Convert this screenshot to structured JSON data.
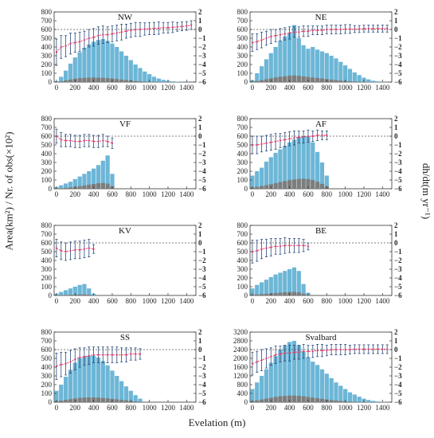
{
  "figure": {
    "ylabel_left": "Area(km²) / Nr. of obs(×10²)",
    "ylabel_right": "dh/dt(m yr⁻¹)",
    "xlabel": "Evelation (m)",
    "colors": {
      "area": "#6db6d6",
      "obs": "#7d7d7d",
      "dhdt_line": "#e03a6a",
      "error": "#2a4a7a",
      "reference": "#555555"
    }
  },
  "chart_data": [
    {
      "type": "bar",
      "title": "NW",
      "x": [
        0,
        50,
        100,
        150,
        200,
        250,
        300,
        350,
        400,
        450,
        500,
        550,
        600,
        650,
        700,
        750,
        800,
        850,
        900,
        950,
        1000,
        1050,
        1100,
        1150,
        1200,
        1250,
        1300,
        1350,
        1400,
        1450
      ],
      "series": [
        {
          "values": [
            10,
            60,
            130,
            210,
            280,
            340,
            390,
            430,
            460,
            480,
            490,
            470,
            440,
            400,
            350,
            300,
            250,
            200,
            160,
            120,
            90,
            60,
            40,
            25,
            15,
            8,
            4,
            2,
            1,
            0
          ]
        },
        {
          "values": [
            2,
            8,
            18,
            28,
            38,
            44,
            48,
            50,
            52,
            50,
            48,
            44,
            40,
            34,
            28,
            22,
            17,
            12,
            9,
            6,
            4,
            3,
            2,
            1,
            1,
            0,
            0,
            0,
            0,
            0
          ]
        },
        {
          "values": [
            -2.6,
            -2.0,
            -1.9,
            -1.6,
            -1.5,
            -1.4,
            -1.2,
            -1.0,
            -0.9,
            -0.7,
            -0.6,
            -0.6,
            -0.5,
            -0.4,
            -0.3,
            -0.2,
            -0.1,
            0.0,
            0.0,
            0.05,
            0.1,
            0.1,
            0.15,
            0.2,
            0.2,
            0.25,
            0.3,
            0.35,
            0.4,
            0.5
          ]
        }
      ],
      "errors": [
        1.5,
        1.3,
        1.2,
        1.2,
        1.1,
        1.1,
        1.0,
        1.0,
        1.0,
        1.0,
        1.0,
        0.9,
        0.9,
        0.9,
        0.9,
        0.8,
        0.8,
        0.8,
        0.8,
        0.7,
        0.7,
        0.7,
        0.7,
        0.6,
        0.6,
        0.6,
        0.5,
        0.5,
        0.5,
        0.5
      ],
      "ylim": [
        0,
        800
      ],
      "y2lim": [
        -6,
        2
      ],
      "xlim": [
        -25,
        1500
      ],
      "reference_y2": 0,
      "yticks": [
        0,
        100,
        200,
        300,
        400,
        500,
        600,
        700,
        800
      ],
      "y2ticks": [
        -6,
        -5,
        -4,
        -3,
        -2,
        -1,
        0,
        1,
        2
      ],
      "xticks": [
        0,
        200,
        400,
        600,
        800,
        1000,
        1200,
        1400
      ]
    },
    {
      "type": "bar",
      "title": "NE",
      "x": [
        0,
        50,
        100,
        150,
        200,
        250,
        300,
        350,
        400,
        450,
        500,
        550,
        600,
        650,
        700,
        750,
        800,
        850,
        900,
        950,
        1000,
        1050,
        1100,
        1150,
        1200,
        1250,
        1300,
        1350,
        1400,
        1450
      ],
      "series": [
        {
          "values": [
            20,
            100,
            180,
            260,
            330,
            400,
            470,
            520,
            560,
            650,
            500,
            420,
            380,
            400,
            370,
            350,
            330,
            300,
            270,
            230,
            190,
            150,
            110,
            80,
            50,
            30,
            15,
            8,
            3,
            1
          ]
        },
        {
          "values": [
            3,
            12,
            22,
            32,
            42,
            52,
            60,
            66,
            72,
            75,
            70,
            64,
            58,
            52,
            46,
            40,
            34,
            28,
            22,
            17,
            13,
            9,
            6,
            4,
            2,
            1,
            1,
            0,
            0,
            0
          ]
        },
        {
          "values": [
            -1.5,
            -1.4,
            -1.2,
            -1.0,
            -0.8,
            -0.7,
            -0.6,
            -0.5,
            -0.4,
            -0.3,
            -0.3,
            -0.2,
            -0.2,
            -0.1,
            -0.1,
            -0.1,
            0.0,
            0.0,
            0.0,
            0.0,
            0.05,
            0.05,
            0.05,
            0.05,
            0.1,
            0.1,
            0.1,
            0.1,
            0.1,
            0.1
          ]
        }
      ],
      "errors": [
        1.0,
        0.9,
        0.9,
        0.8,
        0.8,
        0.7,
        0.7,
        0.7,
        0.7,
        0.6,
        0.6,
        0.6,
        0.6,
        0.5,
        0.5,
        0.5,
        0.5,
        0.5,
        0.5,
        0.5,
        0.5,
        0.5,
        0.4,
        0.4,
        0.4,
        0.4,
        0.4,
        0.4,
        0.4,
        0.4
      ],
      "ylim": [
        0,
        800
      ],
      "y2lim": [
        -6,
        2
      ],
      "xlim": [
        -25,
        1500
      ],
      "reference_y2": 0,
      "yticks": [
        0,
        100,
        200,
        300,
        400,
        500,
        600,
        700,
        800
      ],
      "y2ticks": [
        -6,
        -5,
        -4,
        -3,
        -2,
        -1,
        0,
        1,
        2
      ],
      "xticks": [
        0,
        200,
        400,
        600,
        800,
        1000,
        1200,
        1400
      ]
    },
    {
      "type": "bar",
      "title": "VF",
      "x": [
        0,
        50,
        100,
        150,
        200,
        250,
        300,
        350,
        400,
        450,
        500,
        550,
        600
      ],
      "series": [
        {
          "values": [
            20,
            40,
            60,
            80,
            110,
            140,
            170,
            200,
            230,
            270,
            320,
            380,
            170
          ]
        },
        {
          "values": [
            3,
            6,
            10,
            15,
            22,
            30,
            38,
            46,
            54,
            62,
            66,
            58,
            28
          ]
        },
        {
          "values": [
            0.0,
            -0.4,
            -0.5,
            -0.5,
            -0.6,
            -0.6,
            -0.5,
            -0.5,
            -0.6,
            -0.6,
            -0.5,
            -0.6,
            -0.8
          ]
        }
      ],
      "errors": [
        0.8,
        0.8,
        0.7,
        0.7,
        0.7,
        0.7,
        0.7,
        0.7,
        0.7,
        0.7,
        0.7,
        0.6,
        0.6
      ],
      "ylim": [
        0,
        800
      ],
      "y2lim": [
        -6,
        2
      ],
      "xlim": [
        -25,
        1500
      ],
      "reference_y2": 0,
      "yticks": [
        0,
        100,
        200,
        300,
        400,
        500,
        600,
        700,
        800
      ],
      "y2ticks": [
        -6,
        -5,
        -4,
        -3,
        -2,
        -1,
        0,
        1,
        2
      ],
      "xticks": [
        0,
        200,
        400,
        600,
        800,
        1000,
        1200,
        1400
      ]
    },
    {
      "type": "bar",
      "title": "AF",
      "x": [
        0,
        50,
        100,
        150,
        200,
        250,
        300,
        350,
        400,
        450,
        500,
        550,
        600,
        650,
        700,
        750,
        800
      ],
      "series": [
        {
          "values": [
            150,
            200,
            240,
            310,
            360,
            410,
            450,
            490,
            530,
            560,
            590,
            600,
            600,
            530,
            420,
            300,
            150
          ]
        },
        {
          "values": [
            15,
            22,
            30,
            40,
            52,
            64,
            76,
            88,
            98,
            106,
            112,
            114,
            110,
            100,
            80,
            56,
            28
          ]
        },
        {
          "values": [
            -1.0,
            -1.0,
            -0.9,
            -0.8,
            -0.7,
            -0.6,
            -0.5,
            -0.4,
            -0.3,
            -0.2,
            -0.1,
            -0.1,
            0.0,
            0.0,
            0.1,
            0.1,
            0.1
          ]
        }
      ],
      "errors": [
        1.0,
        1.0,
        0.9,
        0.9,
        0.9,
        0.9,
        0.8,
        0.8,
        0.8,
        0.8,
        0.7,
        0.7,
        0.7,
        0.6,
        0.6,
        0.5,
        0.5
      ],
      "ylim": [
        0,
        800
      ],
      "y2lim": [
        -6,
        2
      ],
      "xlim": [
        -25,
        1500
      ],
      "reference_y2": 0,
      "yticks": [
        0,
        100,
        200,
        300,
        400,
        500,
        600,
        700,
        800
      ],
      "y2ticks": [
        -6,
        -5,
        -4,
        -3,
        -2,
        -1,
        0,
        1,
        2
      ],
      "xticks": [
        0,
        200,
        400,
        600,
        800,
        1000,
        1200,
        1400
      ]
    },
    {
      "type": "bar",
      "title": "KV",
      "x": [
        0,
        50,
        100,
        150,
        200,
        250,
        300,
        350,
        400
      ],
      "series": [
        {
          "values": [
            20,
            40,
            60,
            80,
            100,
            120,
            130,
            80,
            20
          ]
        },
        {
          "values": [
            2,
            4,
            6,
            8,
            10,
            12,
            12,
            8,
            2
          ]
        },
        {
          "values": [
            -0.6,
            -0.9,
            -1.0,
            -0.9,
            -0.8,
            -0.8,
            -0.7,
            -0.6,
            -0.7
          ]
        }
      ],
      "errors": [
        1.0,
        1.0,
        1.0,
        1.0,
        1.0,
        1.0,
        1.0,
        1.0,
        0.5
      ],
      "ylim": [
        0,
        800
      ],
      "y2lim": [
        -6,
        2
      ],
      "xlim": [
        -25,
        1500
      ],
      "reference_y2": 0,
      "yticks": [
        0,
        100,
        200,
        300,
        400,
        500,
        600,
        700,
        800
      ],
      "y2ticks": [
        -6,
        -5,
        -4,
        -3,
        -2,
        -1,
        0,
        1,
        2
      ],
      "xticks": [
        0,
        200,
        400,
        600,
        800,
        1000,
        1200,
        1400
      ]
    },
    {
      "type": "bar",
      "title": "BE",
      "x": [
        0,
        50,
        100,
        150,
        200,
        250,
        300,
        350,
        400,
        450,
        500,
        550,
        600
      ],
      "series": [
        {
          "values": [
            80,
            120,
            150,
            180,
            210,
            240,
            260,
            280,
            300,
            320,
            280,
            130,
            30
          ]
        },
        {
          "values": [
            8,
            12,
            16,
            20,
            24,
            28,
            32,
            36,
            40,
            40,
            36,
            20,
            5
          ]
        },
        {
          "values": [
            -1.0,
            -0.9,
            -0.7,
            -0.6,
            -0.5,
            -0.4,
            -0.4,
            -0.3,
            -0.3,
            -0.3,
            -0.3,
            -0.3,
            -0.4
          ]
        }
      ],
      "errors": [
        1.3,
        1.2,
        1.1,
        1.0,
        1.0,
        0.9,
        0.9,
        0.9,
        0.8,
        0.8,
        0.8,
        0.7,
        0.4
      ],
      "ylim": [
        0,
        800
      ],
      "y2lim": [
        -6,
        2
      ],
      "xlim": [
        -25,
        1500
      ],
      "reference_y2": 0,
      "yticks": [
        0,
        100,
        200,
        300,
        400,
        500,
        600,
        700,
        800
      ],
      "y2ticks": [
        -6,
        -5,
        -4,
        -3,
        -2,
        -1,
        0,
        1,
        2
      ],
      "xticks": [
        0,
        200,
        400,
        600,
        800,
        1000,
        1200,
        1400
      ]
    },
    {
      "type": "bar",
      "title": "SS",
      "x": [
        0,
        50,
        100,
        150,
        200,
        250,
        300,
        350,
        400,
        450,
        500,
        550,
        600,
        650,
        700,
        750,
        800,
        850,
        900
      ],
      "series": [
        {
          "values": [
            130,
            200,
            290,
            370,
            450,
            500,
            520,
            530,
            530,
            510,
            470,
            420,
            360,
            300,
            240,
            180,
            130,
            80,
            40
          ]
        },
        {
          "values": [
            10,
            18,
            26,
            34,
            42,
            48,
            52,
            54,
            54,
            52,
            48,
            44,
            38,
            32,
            26,
            20,
            14,
            9,
            4
          ]
        },
        {
          "values": [
            -1.9,
            -1.7,
            -1.6,
            -1.4,
            -1.1,
            -0.9,
            -0.8,
            -0.7,
            -0.6,
            -0.6,
            -0.6,
            -0.6,
            -0.6,
            -0.6,
            -0.6,
            -0.6,
            -0.5,
            -0.5,
            -0.5
          ]
        }
      ],
      "errors": [
        1.5,
        1.4,
        1.3,
        1.3,
        1.2,
        1.1,
        1.0,
        1.0,
        0.9,
        0.9,
        0.9,
        0.9,
        0.9,
        0.9,
        0.8,
        0.8,
        0.7,
        0.7,
        0.6
      ],
      "ylim": [
        0,
        800
      ],
      "y2lim": [
        -6,
        2
      ],
      "xlim": [
        -25,
        1500
      ],
      "reference_y2": 0,
      "yticks": [
        0,
        100,
        200,
        300,
        400,
        500,
        600,
        700,
        800
      ],
      "y2ticks": [
        -6,
        -5,
        -4,
        -3,
        -2,
        -1,
        0,
        1,
        2
      ],
      "xticks": [
        0,
        200,
        400,
        600,
        800,
        1000,
        1200,
        1400
      ]
    },
    {
      "type": "bar",
      "title": "Svalbard",
      "x": [
        0,
        50,
        100,
        150,
        200,
        250,
        300,
        350,
        400,
        450,
        500,
        550,
        600,
        650,
        700,
        750,
        800,
        850,
        900,
        950,
        1000,
        1050,
        1100,
        1150,
        1200,
        1250,
        1300,
        1350,
        1400,
        1450
      ],
      "series": [
        {
          "values": [
            600,
            900,
            1200,
            1500,
            1800,
            2100,
            2400,
            2600,
            2750,
            2800,
            2600,
            2300,
            2050,
            1850,
            1700,
            1500,
            1300,
            1100,
            900,
            750,
            600,
            450,
            350,
            250,
            160,
            100,
            60,
            30,
            15,
            5
          ]
        },
        {
          "values": [
            40,
            80,
            120,
            160,
            200,
            240,
            270,
            290,
            300,
            300,
            290,
            270,
            240,
            210,
            180,
            150,
            120,
            95,
            75,
            55,
            40,
            28,
            18,
            10,
            6,
            3,
            2,
            1,
            0,
            0
          ]
        },
        {
          "values": [
            -1.6,
            -1.4,
            -1.2,
            -1.0,
            -0.8,
            -0.6,
            -0.5,
            -0.4,
            -0.4,
            -0.3,
            -0.3,
            -0.2,
            -0.2,
            -0.2,
            -0.1,
            -0.1,
            -0.1,
            0.0,
            0.0,
            0.0,
            0.0,
            0.0,
            0.05,
            0.05,
            0.05,
            0.05,
            0.05,
            0.05,
            0.05,
            0.05
          ]
        }
      ],
      "errors": [
        1.3,
        1.2,
        1.2,
        1.1,
        1.0,
        1.0,
        0.9,
        0.9,
        0.9,
        0.8,
        0.8,
        0.8,
        0.7,
        0.7,
        0.7,
        0.7,
        0.6,
        0.6,
        0.6,
        0.6,
        0.6,
        0.5,
        0.5,
        0.5,
        0.5,
        0.5,
        0.5,
        0.5,
        0.5,
        0.5
      ],
      "ylim": [
        0,
        3200
      ],
      "y2lim": [
        -6,
        2
      ],
      "xlim": [
        -25,
        1500
      ],
      "reference_y2": 0,
      "yticks": [
        0,
        400,
        800,
        1200,
        1600,
        2000,
        2400,
        2800,
        3200
      ],
      "y2ticks": [
        -6,
        -5,
        -4,
        -3,
        -2,
        -1,
        0,
        1,
        2
      ],
      "xticks": [
        0,
        200,
        400,
        600,
        800,
        1000,
        1200,
        1400
      ]
    }
  ]
}
